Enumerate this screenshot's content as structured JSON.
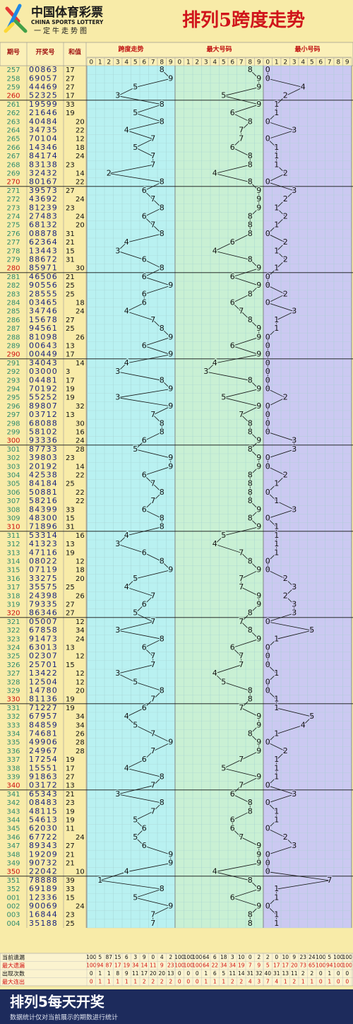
{
  "header": {
    "logo_cn": "中国体育彩票",
    "logo_en": "CHINA SPORTS LOTTERY",
    "logo_sub": "一定牛走势图",
    "title": "排列5跨度走势"
  },
  "columns": {
    "period": "期号",
    "number": "开奖号",
    "sum": "和值",
    "span": "跨度走势",
    "max": "最大号码",
    "min": "最小号码"
  },
  "digits": [
    0,
    1,
    2,
    3,
    4,
    5,
    6,
    7,
    8,
    9
  ],
  "periods": [
    "257",
    "258",
    "259",
    "260",
    "261",
    "262",
    "263",
    "264",
    "265",
    "266",
    "267",
    "268",
    "269",
    "270",
    "271",
    "272",
    "273",
    "274",
    "275",
    "276",
    "277",
    "278",
    "279",
    "280",
    "281",
    "282",
    "283",
    "284",
    "285",
    "286",
    "287",
    "288",
    "289",
    "290",
    "291",
    "292",
    "293",
    "294",
    "295",
    "296",
    "297",
    "298",
    "299",
    "300",
    "301",
    "302",
    "303",
    "304",
    "305",
    "306",
    "307",
    "308",
    "309",
    "310",
    "311",
    "312",
    "313",
    "314",
    "315",
    "316",
    "317",
    "318",
    "319",
    "320",
    "321",
    "322",
    "323",
    "324",
    "325",
    "326",
    "327",
    "328",
    "329",
    "330",
    "331",
    "332",
    "333",
    "334",
    "335",
    "336",
    "337",
    "338",
    "339",
    "340",
    "341",
    "342",
    "343",
    "344",
    "345",
    "346",
    "347",
    "348",
    "349",
    "350",
    "351",
    "352",
    "001",
    "002",
    "003",
    "004"
  ],
  "numbers": [
    "00863",
    "69057",
    "44469",
    "52325",
    "19599",
    "21646",
    "40484",
    "34735",
    "70104",
    "14346",
    "84174",
    "83138",
    "32432",
    "80167",
    "39573",
    "43692",
    "81239",
    "27483",
    "68132",
    "08878",
    "62364",
    "13443",
    "88672",
    "85971",
    "46506",
    "90556",
    "28555",
    "03465",
    "34746",
    "15678",
    "94561",
    "81098",
    "00643",
    "00449",
    "34043",
    "03000",
    "04481",
    "70192",
    "55252",
    "89807",
    "03712",
    "68088",
    "58102",
    "93336",
    "87733",
    "39803",
    "20192",
    "42538",
    "84184",
    "50881",
    "58216",
    "84399",
    "48300",
    "71896",
    "53314",
    "41323",
    "47116",
    "08022",
    "07119",
    "33275",
    "35575",
    "24398",
    "79335",
    "86346",
    "05007",
    "67858",
    "91473",
    "63013",
    "02307",
    "25701",
    "13422",
    "12504",
    "14780",
    "81136",
    "71227",
    "67957",
    "84859",
    "74681",
    "49906",
    "24967",
    "17254",
    "15551",
    "91863",
    "03172",
    "65343",
    "08483",
    "48115",
    "54613",
    "62030",
    "67722",
    "89343",
    "19209",
    "90732",
    "22042",
    "78888",
    "69189",
    "12336",
    "90069",
    "16844",
    "35188"
  ],
  "sums": [
    17,
    27,
    27,
    17,
    33,
    19,
    20,
    22,
    12,
    18,
    24,
    23,
    14,
    22,
    27,
    24,
    23,
    24,
    20,
    31,
    21,
    15,
    31,
    30,
    21,
    25,
    25,
    18,
    24,
    27,
    25,
    26,
    13,
    17,
    14,
    3,
    17,
    19,
    19,
    32,
    13,
    30,
    16,
    24,
    28,
    23,
    14,
    22,
    25,
    22,
    22,
    33,
    15,
    31,
    16,
    13,
    19,
    12,
    18,
    20,
    25,
    26,
    27,
    27,
    12,
    34,
    24,
    13,
    12,
    15,
    12,
    12,
    20,
    19,
    19,
    34,
    34,
    26,
    28,
    28,
    19,
    17,
    27,
    13,
    21,
    23,
    19,
    19,
    11,
    24,
    27,
    21,
    21,
    10,
    39,
    33,
    15,
    24,
    23,
    25
  ],
  "spans": [
    8,
    9,
    5,
    3,
    8,
    5,
    8,
    4,
    7,
    5,
    7,
    7,
    2,
    8,
    6,
    7,
    8,
    6,
    7,
    8,
    4,
    3,
    6,
    8,
    6,
    9,
    6,
    6,
    4,
    7,
    8,
    9,
    6,
    9,
    4,
    3,
    8,
    9,
    3,
    9,
    7,
    8,
    8,
    6,
    5,
    9,
    9,
    6,
    7,
    8,
    7,
    6,
    8,
    8,
    4,
    3,
    6,
    8,
    9,
    5,
    4,
    7,
    6,
    5,
    7,
    3,
    8,
    6,
    7,
    7,
    3,
    5,
    8,
    7,
    6,
    4,
    5,
    7,
    9,
    7,
    6,
    4,
    8,
    7,
    3,
    8,
    7,
    5,
    6,
    5,
    6,
    9,
    9,
    4,
    1,
    8,
    5,
    9,
    7,
    7
  ],
  "max": [
    8,
    9,
    9,
    5,
    9,
    6,
    8,
    7,
    7,
    6,
    8,
    8,
    4,
    8,
    9,
    9,
    9,
    8,
    8,
    8,
    6,
    4,
    8,
    9,
    6,
    9,
    8,
    6,
    7,
    8,
    9,
    9,
    6,
    9,
    4,
    3,
    8,
    9,
    5,
    9,
    7,
    8,
    8,
    9,
    8,
    9,
    9,
    8,
    8,
    8,
    8,
    9,
    8,
    9,
    5,
    4,
    7,
    8,
    9,
    7,
    7,
    9,
    9,
    8,
    7,
    8,
    9,
    6,
    7,
    7,
    4,
    5,
    8,
    8,
    7,
    9,
    9,
    8,
    9,
    9,
    7,
    5,
    9,
    7,
    6,
    8,
    8,
    6,
    6,
    7,
    9,
    9,
    9,
    4,
    8,
    9,
    6,
    9,
    8,
    8
  ],
  "min": [
    0,
    0,
    4,
    2,
    1,
    1,
    0,
    3,
    0,
    1,
    1,
    1,
    2,
    0,
    3,
    2,
    1,
    2,
    1,
    0,
    2,
    1,
    2,
    1,
    0,
    0,
    2,
    0,
    3,
    1,
    1,
    0,
    0,
    0,
    0,
    0,
    0,
    0,
    2,
    0,
    0,
    0,
    0,
    3,
    3,
    0,
    0,
    2,
    1,
    0,
    1,
    3,
    0,
    1,
    1,
    1,
    1,
    0,
    0,
    2,
    3,
    2,
    3,
    3,
    0,
    5,
    1,
    0,
    0,
    0,
    1,
    0,
    0,
    1,
    1,
    5,
    4,
    1,
    0,
    2,
    1,
    1,
    1,
    0,
    3,
    0,
    1,
    1,
    0,
    2,
    3,
    0,
    0,
    0,
    7,
    1,
    1,
    0,
    1,
    1
  ],
  "stats": {
    "labels": [
      "当前遗漏",
      "最大遗漏",
      "出现次数",
      "最大连出"
    ],
    "values": [
      [
        100,
        5,
        87,
        15,
        6,
        3,
        9,
        0,
        4,
        2,
        100,
        100,
        100,
        64,
        6,
        18,
        3,
        10,
        0,
        2,
        2,
        0,
        10,
        9,
        23,
        24,
        100,
        5,
        100,
        100
      ],
      [
        100,
        94,
        87,
        17,
        19,
        34,
        14,
        11,
        9,
        23,
        100,
        100,
        100,
        64,
        22,
        34,
        34,
        19,
        7,
        9,
        5,
        17,
        17,
        20,
        73,
        65,
        100,
        94,
        100,
        100
      ],
      [
        0,
        1,
        1,
        8,
        9,
        11,
        17,
        20,
        20,
        13,
        0,
        0,
        0,
        1,
        6,
        5,
        11,
        14,
        31,
        32,
        40,
        31,
        13,
        11,
        2,
        2,
        0,
        1,
        0,
        0
      ],
      [
        0,
        1,
        1,
        1,
        1,
        1,
        2,
        2,
        2,
        2,
        0,
        0,
        0,
        1,
        1,
        1,
        2,
        2,
        4,
        3,
        7,
        4,
        1,
        2,
        1,
        1,
        0,
        1,
        0,
        0
      ]
    ]
  },
  "footer": {
    "title": "排列5每天开奖",
    "note": "数据统计仅对当前展示的期数进行统计"
  }
}
